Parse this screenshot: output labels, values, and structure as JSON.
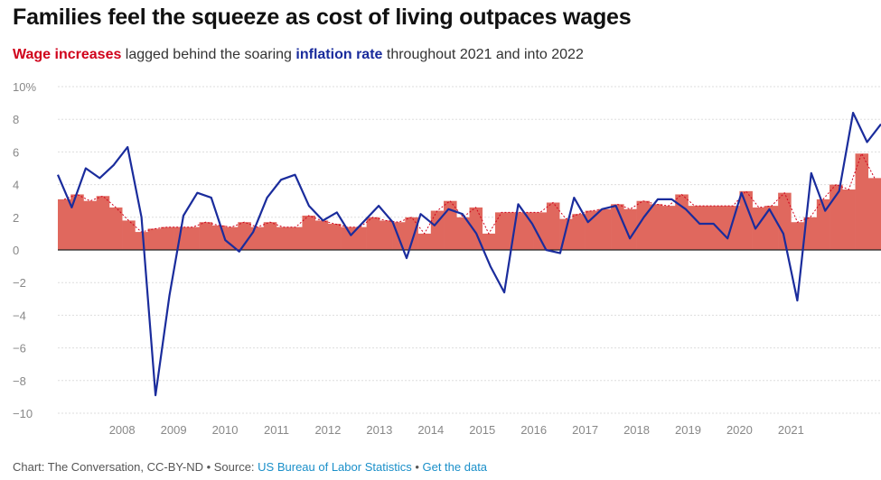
{
  "title": "Families feel the squeeze as cost of living outpaces wages",
  "subtitle": {
    "wage": "Wage increases",
    "mid": " lagged behind the soaring ",
    "infl": "inflation rate",
    "end": " throughout 2021 and into 2022"
  },
  "footer": {
    "prefix": "Chart: The Conversation, CC-BY-ND • Source: ",
    "source_link": "US Bureau of Labor Statistics",
    "sep": " • ",
    "data_link": "Get the data"
  },
  "colors": {
    "wage": "#e0685e",
    "wage_dotted": "#d0021b",
    "inflation": "#1a2c9c",
    "grid": "#dddddd",
    "zero": "#222222"
  },
  "chart_data": {
    "type": "bar",
    "x_unit": "quarter",
    "x_start": "2007 Q2",
    "ylim": [
      -10,
      10
    ],
    "y_ticks": [
      10,
      8,
      6,
      4,
      2,
      0,
      -2,
      -4,
      -6,
      -8,
      -10
    ],
    "y_tick_labels": [
      "10%",
      "8",
      "6",
      "4",
      "2",
      "0",
      "−2",
      "−4",
      "−6",
      "−8",
      "−10"
    ],
    "x_tick_labels": [
      "2008",
      "2009",
      "2010",
      "2011",
      "2012",
      "2013",
      "2014",
      "2015",
      "2016",
      "2017",
      "2018",
      "2019",
      "2020",
      "2021"
    ],
    "grid": true,
    "series": [
      {
        "name": "Wage increases",
        "type": "bar",
        "values": [
          3.1,
          3.4,
          3.0,
          3.3,
          2.6,
          1.8,
          1.1,
          1.3,
          1.4,
          1.4,
          1.4,
          1.7,
          1.5,
          1.4,
          1.7,
          1.4,
          1.7,
          1.4,
          1.4,
          2.1,
          1.8,
          1.6,
          1.4,
          1.4,
          2.0,
          1.8,
          1.7,
          2.0,
          1.0,
          2.4,
          3.0,
          2.0,
          2.6,
          1.0,
          2.3,
          2.3,
          2.3,
          2.3,
          2.9,
          1.9,
          2.2,
          2.4,
          2.5,
          2.8,
          2.5,
          3.0,
          2.8,
          2.7,
          3.4,
          2.7,
          2.7,
          2.7,
          2.7,
          3.6,
          2.6,
          2.7,
          3.5,
          1.7,
          2.0,
          3.1,
          4.0,
          3.7,
          5.9,
          4.4
        ]
      },
      {
        "name": "Inflation rate",
        "type": "line",
        "values": [
          4.6,
          2.6,
          5.0,
          4.4,
          5.2,
          6.3,
          2.0,
          -8.9,
          -2.8,
          2.1,
          3.5,
          3.2,
          0.6,
          -0.1,
          1.1,
          3.2,
          4.3,
          4.6,
          2.7,
          1.8,
          2.3,
          0.9,
          1.8,
          2.7,
          1.7,
          -0.5,
          2.2,
          1.5,
          2.5,
          2.2,
          1.0,
          -1.0,
          -2.6,
          2.8,
          1.6,
          0.0,
          -0.2,
          3.2,
          1.7,
          2.5,
          2.7,
          0.7,
          2.0,
          3.1,
          3.1,
          2.5,
          1.6,
          1.6,
          0.7,
          3.5,
          1.3,
          2.5,
          1.0,
          -3.1,
          4.7,
          2.4,
          3.6,
          8.4,
          6.6,
          7.7
        ]
      }
    ]
  }
}
